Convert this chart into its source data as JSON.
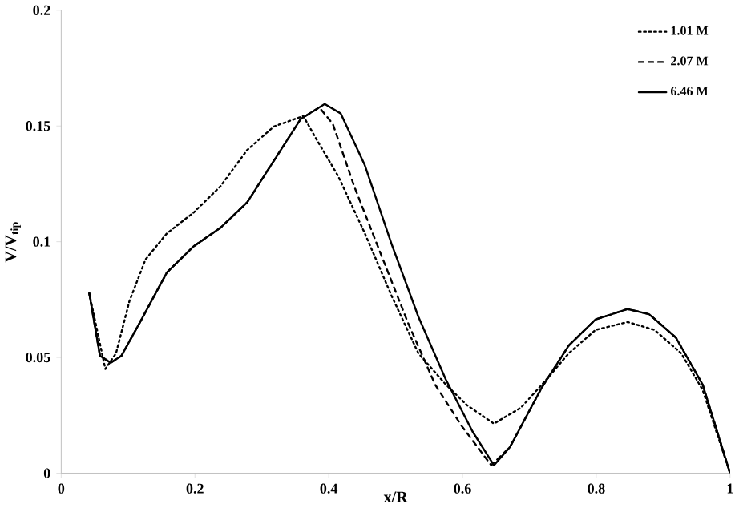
{
  "chart_data": {
    "type": "line",
    "xlabel": "x/R",
    "ylabel": "V/V$_{tip}$",
    "xlim": [
      0,
      1
    ],
    "ylim": [
      0,
      0.2
    ],
    "xticks": [
      0,
      0.2,
      0.4,
      0.6,
      0.8,
      1
    ],
    "yticks": [
      0,
      0.05,
      0.1,
      0.15,
      0.2
    ],
    "grid": false,
    "legend": "top right",
    "marker": "none",
    "series": [
      {
        "name": "1.01 M",
        "color": "#000000",
        "line_style": "dotted",
        "x": [
          0.042,
          0.066,
          0.082,
          0.102,
          0.126,
          0.158,
          0.198,
          0.238,
          0.278,
          0.318,
          0.362,
          0.382,
          0.414,
          0.454,
          0.494,
          0.534,
          0.575,
          0.607,
          0.647,
          0.687,
          0.719,
          0.759,
          0.799,
          0.847,
          0.887,
          0.927,
          0.959,
          1
        ],
        "values": [
          0.0777,
          0.045,
          0.0518,
          0.0743,
          0.0923,
          0.1036,
          0.1126,
          0.1239,
          0.1396,
          0.1498,
          0.1543,
          0.1441,
          0.1284,
          0.1036,
          0.0766,
          0.0518,
          0.0383,
          0.0293,
          0.0214,
          0.0282,
          0.0383,
          0.0518,
          0.0619,
          0.0653,
          0.0619,
          0.0518,
          0.036,
          0
        ]
      },
      {
        "name": "2.07 M",
        "color": "#000000",
        "line_style": "dashed",
        "x": [
          0.042,
          0.058,
          0.074,
          0.09,
          0.118,
          0.158,
          0.198,
          0.238,
          0.278,
          0.318,
          0.358,
          0.386,
          0.406,
          0.438,
          0.478,
          0.518,
          0.559,
          0.599,
          0.643,
          0.671,
          0.719,
          0.759,
          0.799,
          0.847,
          0.879,
          0.919,
          0.959,
          1
        ],
        "values": [
          0.0777,
          0.0507,
          0.0477,
          0.0507,
          0.0653,
          0.0867,
          0.098,
          0.106,
          0.117,
          0.135,
          0.153,
          0.158,
          0.151,
          0.124,
          0.0946,
          0.0653,
          0.0383,
          0.0203,
          0.0034,
          0.0113,
          0.0372,
          0.0552,
          0.0664,
          0.0709,
          0.0687,
          0.0586,
          0.0383,
          0
        ]
      },
      {
        "name": "6.46 M",
        "color": "#000000",
        "line_style": "solid",
        "x": [
          0.042,
          0.058,
          0.074,
          0.09,
          0.118,
          0.158,
          0.198,
          0.238,
          0.278,
          0.318,
          0.358,
          0.394,
          0.418,
          0.454,
          0.494,
          0.534,
          0.575,
          0.615,
          0.647,
          0.671,
          0.719,
          0.759,
          0.799,
          0.847,
          0.879,
          0.919,
          0.959,
          1
        ],
        "values": [
          0.0777,
          0.0507,
          0.0477,
          0.0507,
          0.0653,
          0.0867,
          0.098,
          0.106,
          0.117,
          0.135,
          0.153,
          0.1595,
          0.1554,
          0.133,
          0.099,
          0.0676,
          0.0405,
          0.018,
          0.0034,
          0.0113,
          0.0372,
          0.0552,
          0.0664,
          0.0709,
          0.0687,
          0.0586,
          0.0383,
          0
        ]
      }
    ]
  }
}
